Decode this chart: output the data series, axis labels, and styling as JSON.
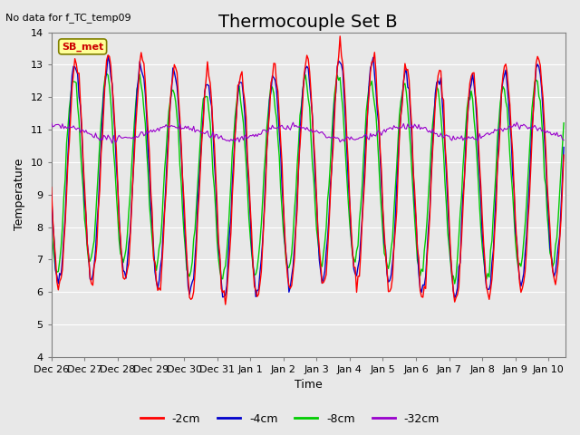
{
  "title": "Thermocouple Set B",
  "xlabel": "Time",
  "ylabel": "Temperature",
  "annotation": "No data for f_TC_temp09",
  "legend_label": "SB_met",
  "series_labels": [
    "-2cm",
    "-4cm",
    "-8cm",
    "-32cm"
  ],
  "series_colors": [
    "#ff0000",
    "#0000cc",
    "#00cc00",
    "#9900cc"
  ],
  "ylim": [
    4.0,
    14.0
  ],
  "yticks": [
    4.0,
    5.0,
    6.0,
    7.0,
    8.0,
    9.0,
    10.0,
    11.0,
    12.0,
    13.0,
    14.0
  ],
  "background_color": "#e8e8e8",
  "plot_bg_color": "#e8e8e8",
  "grid_color": "#ffffff",
  "title_fontsize": 14,
  "label_fontsize": 9,
  "tick_fontsize": 8
}
